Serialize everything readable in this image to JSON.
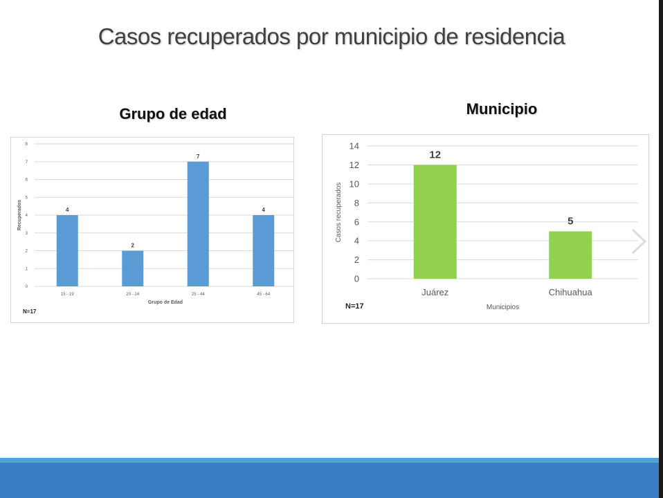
{
  "slide": {
    "title": "Casos recuperados por municipio de residencia"
  },
  "colors": {
    "bar_blue": "#5b9bd5",
    "bar_green": "#92d050",
    "footer_blue": "#3a7fc6",
    "footer_stripe": "#4fa3d9"
  },
  "icons": {
    "next": "chevron-right-icon"
  },
  "chart_data": [
    {
      "type": "bar",
      "title": "Grupo de edad",
      "categories": [
        "15 - 19",
        "20 - 24",
        "25 - 44",
        "45 - 64"
      ],
      "values": [
        4,
        2,
        7,
        4
      ],
      "data_labels": [
        "4",
        "2",
        "7",
        "4"
      ],
      "xlabel": "Grupo de Edad",
      "ylabel": "Recuperados",
      "ylim": [
        0,
        8
      ],
      "yticks": [
        "0",
        "1",
        "2",
        "3",
        "4",
        "5",
        "6",
        "7",
        "8"
      ],
      "grid": true,
      "note": "N=17"
    },
    {
      "type": "bar",
      "title": "Municipio",
      "categories": [
        "Juárez",
        "Chihuahua"
      ],
      "values": [
        12,
        5
      ],
      "data_labels": [
        "12",
        "5"
      ],
      "xlabel": "Municipios",
      "ylabel": "Casos recuperados",
      "ylim": [
        0,
        14
      ],
      "yticks": [
        "0",
        "2",
        "4",
        "6",
        "8",
        "10",
        "12",
        "14"
      ],
      "grid": true,
      "note": "N=17"
    }
  ]
}
